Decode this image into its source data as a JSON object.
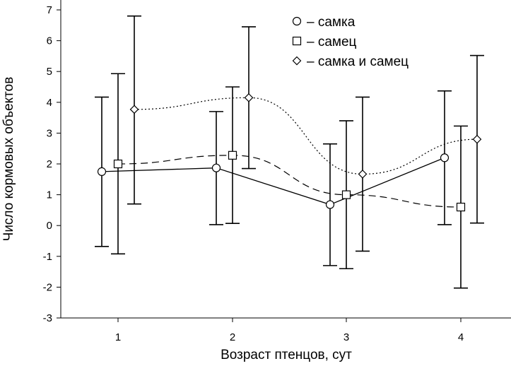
{
  "chart_data": {
    "type": "line",
    "xlabel": "Возраст птенцов, сут",
    "ylabel": "Число кормовых объектов",
    "x_ticks": [
      "1",
      "2",
      "3",
      "4"
    ],
    "x": [
      1,
      2,
      3,
      4
    ],
    "ylim": [
      -3,
      7
    ],
    "y_ticks": [
      "-3",
      "-2",
      "-1",
      "0",
      "1",
      "2",
      "3",
      "4",
      "5",
      "6",
      "7"
    ],
    "grid": false,
    "legend_position": "top-right",
    "series": [
      {
        "name": "– самка",
        "marker": "circle",
        "line_style": "solid",
        "values": [
          1.75,
          1.87,
          0.68,
          2.2
        ],
        "err_low": [
          -0.68,
          0.03,
          -1.3,
          0.03
        ],
        "err_high": [
          4.17,
          3.7,
          2.65,
          4.37
        ]
      },
      {
        "name": "– самец",
        "marker": "square",
        "line_style": "dashed",
        "values": [
          2.0,
          2.28,
          1.0,
          0.6
        ],
        "err_low": [
          -0.92,
          0.07,
          -1.4,
          -2.03
        ],
        "err_high": [
          4.93,
          4.5,
          3.4,
          3.23
        ]
      },
      {
        "name": "– самка и самец",
        "marker": "diamond",
        "line_style": "dotted",
        "values": [
          3.77,
          4.15,
          1.67,
          2.8
        ],
        "err_low": [
          0.7,
          1.85,
          -0.83,
          0.08
        ],
        "err_high": [
          6.8,
          6.45,
          4.17,
          5.52
        ]
      }
    ]
  }
}
